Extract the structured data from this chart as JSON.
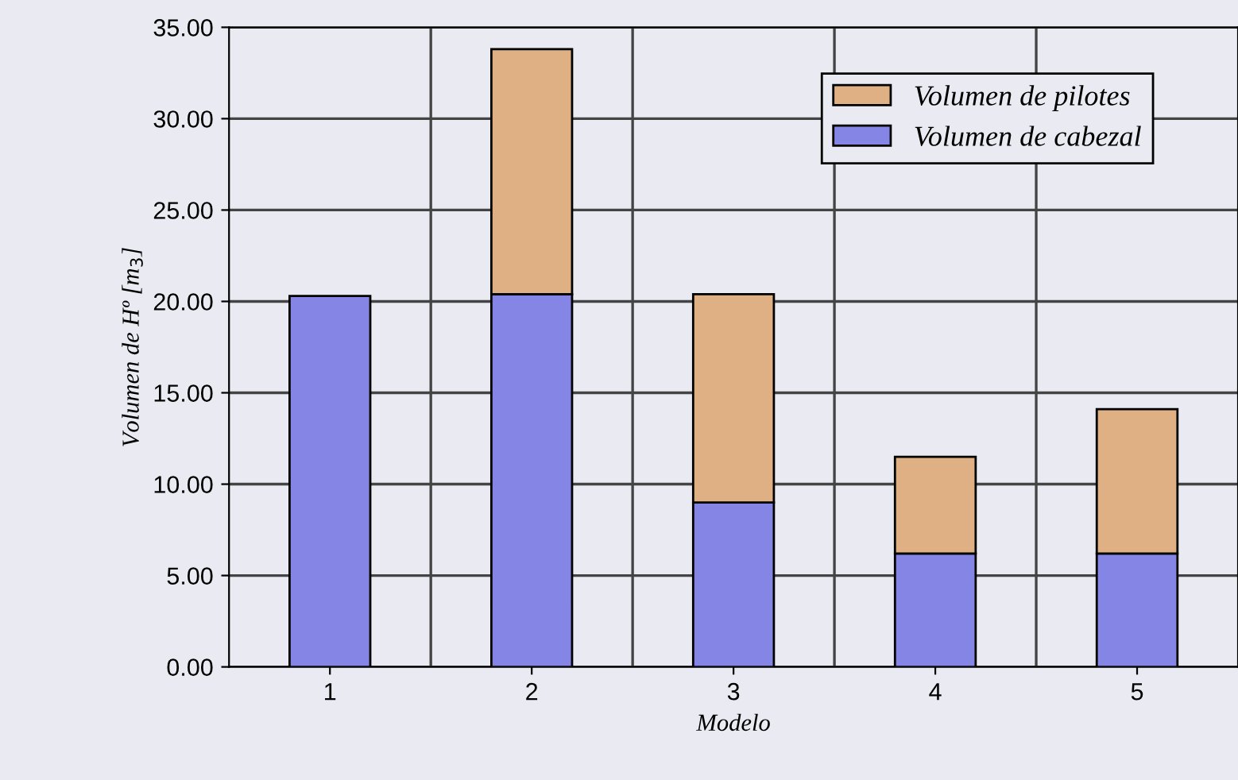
{
  "chart_data": {
    "type": "bar",
    "stacked": true,
    "xlabel": "Modelo",
    "ylabel": "Volumen de Hº [m$_{3}$]",
    "categories": [
      "1",
      "2",
      "3",
      "4",
      "5"
    ],
    "series": [
      {
        "name": "Volumen de cabezal",
        "color": "#8585e6",
        "values": [
          20.3,
          20.4,
          9.0,
          6.2,
          6.2
        ]
      },
      {
        "name": "Volumen de pilotes",
        "color": "#deb083",
        "values": [
          null,
          13.4,
          11.4,
          5.3,
          7.9
        ]
      }
    ],
    "ylim": [
      0,
      35
    ],
    "yticks": [
      {
        "value": 0,
        "label": "0.00"
      },
      {
        "value": 5,
        "label": "5.00"
      },
      {
        "value": 10,
        "label": "10.00"
      },
      {
        "value": 15,
        "label": "15.00"
      },
      {
        "value": 20,
        "label": "20.00"
      },
      {
        "value": 25,
        "label": "25.00"
      },
      {
        "value": 30,
        "label": "30.00"
      },
      {
        "value": 35,
        "label": "35.00"
      }
    ],
    "grid": true,
    "legend": "top right"
  }
}
